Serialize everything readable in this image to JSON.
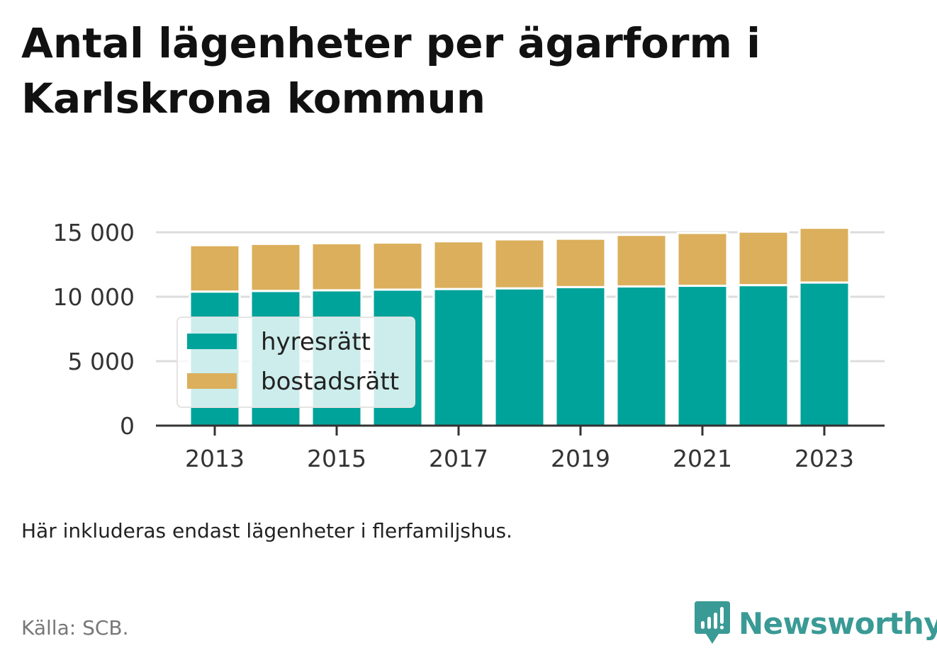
{
  "title": "Antal lägenheter per ägarform i Karlskrona kommun",
  "note": "Här inkluderas endast lägenheter i flerfamiljshus.",
  "source": "Källa: SCB.",
  "brand": {
    "name": "Newsworthy",
    "icon": "newsworthy-logo-icon",
    "color": "#3a9a95"
  },
  "chart_data": {
    "type": "bar",
    "stacked": true,
    "x": [
      2013,
      2014,
      2015,
      2016,
      2017,
      2018,
      2019,
      2020,
      2021,
      2022,
      2023
    ],
    "x_tick_labels": [
      "2013",
      "2015",
      "2017",
      "2019",
      "2021",
      "2023"
    ],
    "x_tick_values": [
      2013,
      2015,
      2017,
      2019,
      2021,
      2023
    ],
    "series": [
      {
        "name": "hyresrätt",
        "color": "#00a39a",
        "values": [
          10400,
          10450,
          10500,
          10550,
          10600,
          10650,
          10750,
          10800,
          10850,
          10900,
          11100
        ]
      },
      {
        "name": "bostadsrätt",
        "color": "#dbaf5c",
        "values": [
          3600,
          3650,
          3650,
          3650,
          3700,
          3800,
          3750,
          4000,
          4100,
          4150,
          4250
        ]
      }
    ],
    "ylim": [
      0,
      15000
    ],
    "y_ticks": [
      0,
      5000,
      10000,
      15000
    ],
    "y_tick_labels": [
      "0",
      "5 000",
      "10 000",
      "15 000"
    ],
    "xlabel": "",
    "ylabel": "",
    "grid": true,
    "legend": {
      "placement": "bottom-left",
      "entries": [
        "hyresrätt",
        "bostadsrätt"
      ]
    }
  }
}
